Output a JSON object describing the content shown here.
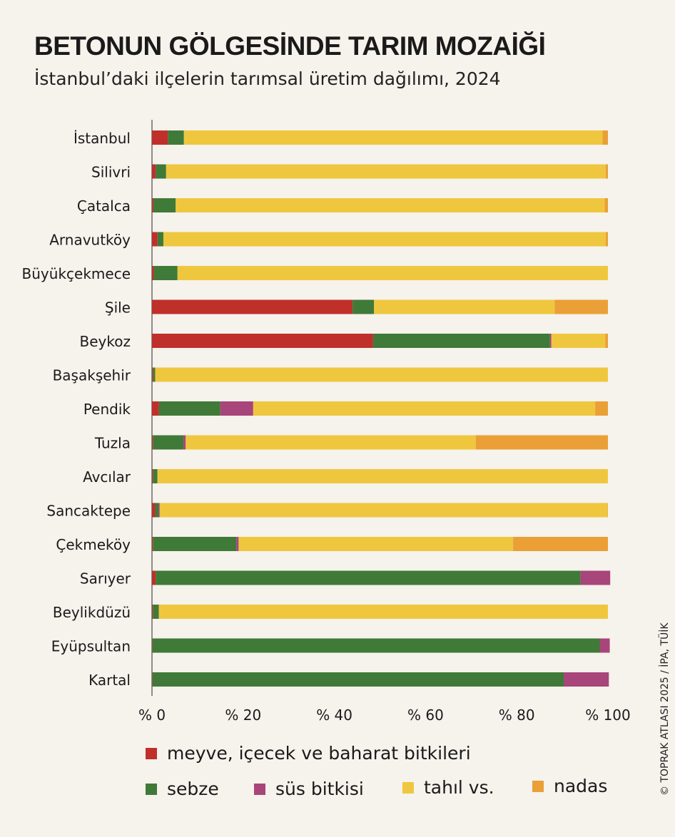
{
  "header": {
    "title": "BETONUN GÖLGESİNDE TARIM MOZAİĞİ",
    "subtitle": "İstanbul’daki ilçelerin tarımsal üretim dağılımı, 2024"
  },
  "credit": "© TOPRAK ATLASI 2025 / İPA, TÜİK",
  "colors": {
    "meyve": "#c0302a",
    "sebze": "#3f7a38",
    "sus": "#a8457a",
    "tahil": "#efc73e",
    "nadas": "#eaa036"
  },
  "legend": [
    {
      "key": "meyve",
      "label": "meyve, içecek ve baharat bitkileri"
    },
    {
      "key": "sebze",
      "label": "sebze"
    },
    {
      "key": "sus",
      "label": "süs bitkisi"
    },
    {
      "key": "tahil",
      "label": "tahıl vs."
    },
    {
      "key": "nadas",
      "label": "nadas"
    }
  ],
  "chart_data": {
    "type": "bar",
    "orientation": "horizontal",
    "stacked": true,
    "categories": [
      "İstanbul",
      "Silivri",
      "Çatalca",
      "Arnavutköy",
      "Büyükçekmece",
      "Şile",
      "Beykoz",
      "Başakşehir",
      "Pendik",
      "Tuzla",
      "Avcılar",
      "Sancaktepe",
      "Çekmeköy",
      "Sarıyer",
      "Beylikdüzü",
      "Eyüpsultan",
      "Kartal"
    ],
    "series": [
      {
        "key": "meyve",
        "name": "meyve, içecek ve baharat bitkileri",
        "values": [
          3.5,
          0.8,
          0.3,
          1.2,
          0.4,
          44,
          48.5,
          0.2,
          1.5,
          0.2,
          0.2,
          0.7,
          0.2,
          0.8,
          0.2,
          0.1,
          0.1
        ]
      },
      {
        "key": "sebze",
        "name": "sebze",
        "values": [
          3.5,
          2.3,
          4.9,
          1.3,
          5.2,
          4.7,
          38.8,
          0.5,
          13.5,
          6.7,
          1.0,
          0.8,
          18.3,
          93.2,
          1.3,
          98.1,
          90.2
        ]
      },
      {
        "key": "sus",
        "name": "süs bitkisi",
        "values": [
          0,
          0,
          0,
          0,
          0,
          0,
          0.3,
          0,
          7.2,
          0.5,
          0,
          0.2,
          0.5,
          6.5,
          0,
          2.2,
          9.9
        ]
      },
      {
        "key": "tahil",
        "name": "tahıl vs.",
        "values": [
          91.8,
          96.4,
          94.1,
          97.0,
          94.4,
          39.6,
          11.8,
          99.3,
          75.0,
          63.6,
          98.8,
          98.2,
          60.2,
          0,
          98.5,
          0,
          0
        ]
      },
      {
        "key": "nadas",
        "name": "nadas",
        "values": [
          1.2,
          0.5,
          0.7,
          0.5,
          0,
          11.7,
          0.6,
          0,
          2.8,
          29.0,
          0,
          0.1,
          20.8,
          0,
          0,
          0,
          0
        ]
      }
    ],
    "xlim": [
      0,
      100
    ],
    "xticks": [
      "% 0",
      "% 20",
      "% 40",
      "% 60",
      "% 80",
      "% 100"
    ],
    "grid": false,
    "legend_position": "bottom"
  }
}
